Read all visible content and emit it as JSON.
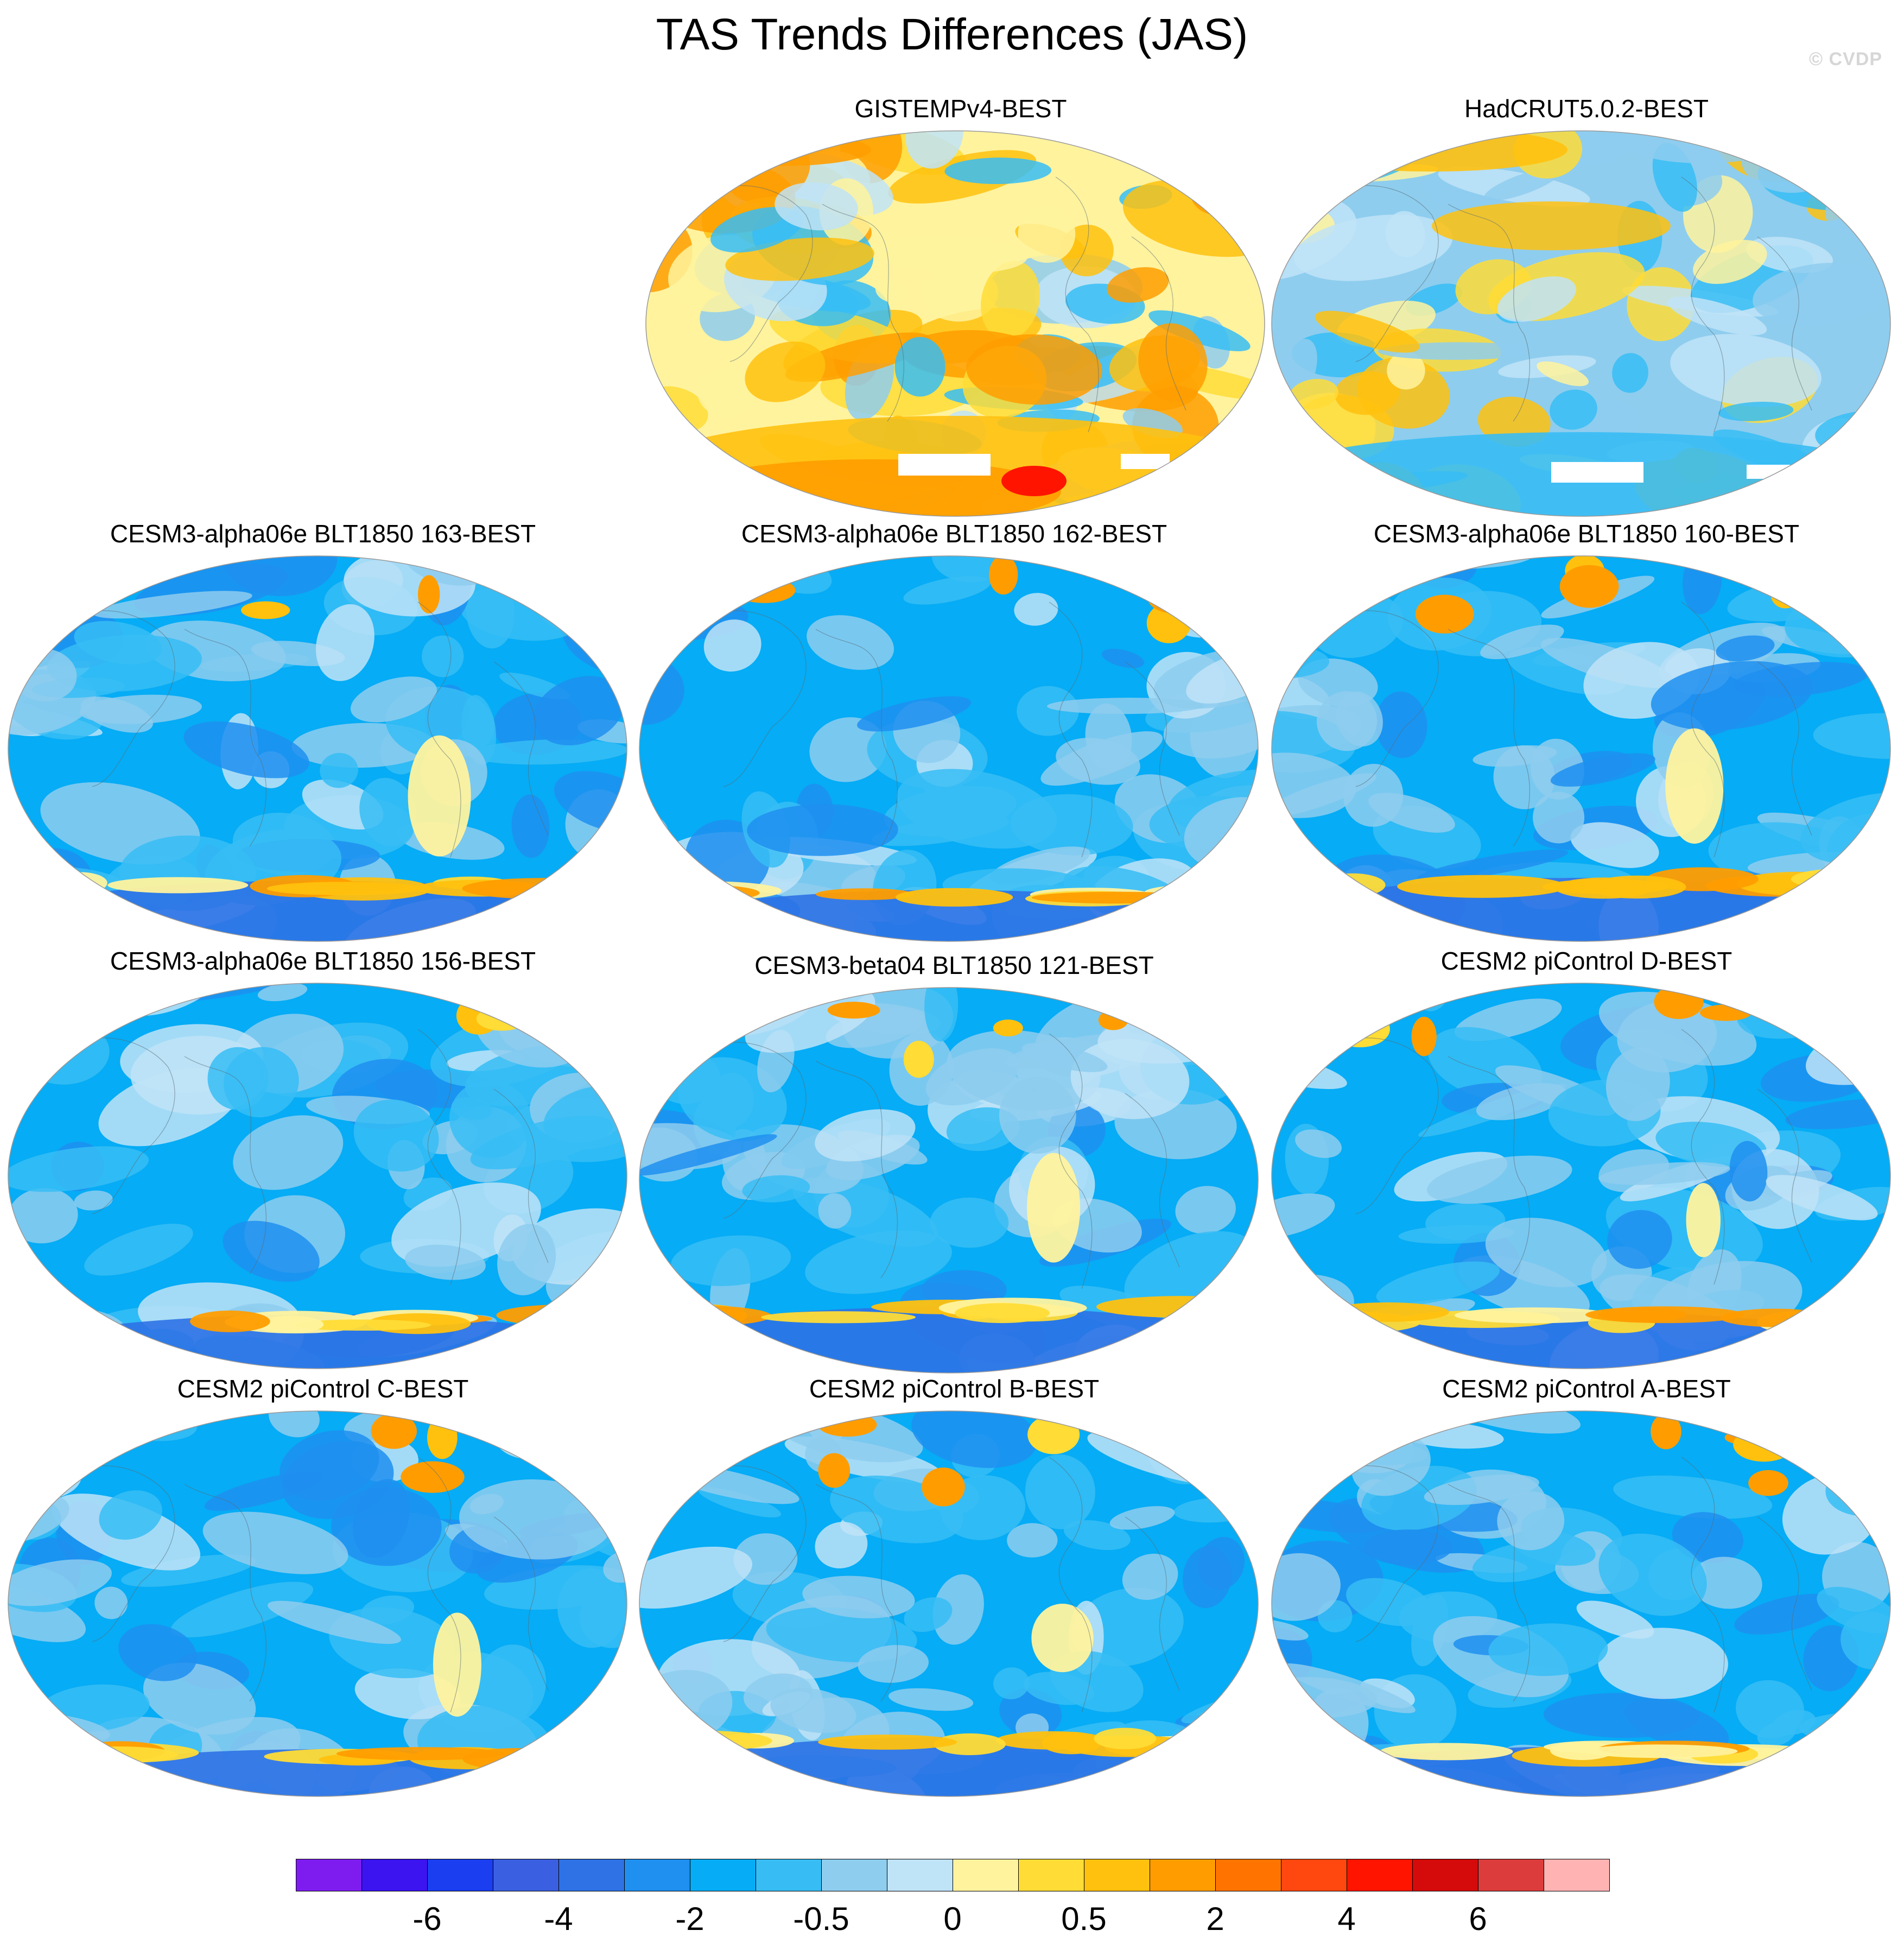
{
  "title": "TAS Trends Differences (JAS)",
  "watermark": "© CVDP",
  "colors": {
    "bin-6-": "#7e1cf0",
    "bin-7": "#3b14f0",
    "bin-6": "#1a3ef0",
    "bin-5": "#3a5fe0",
    "bin-4": "#2e72e6",
    "bin-3": "#1f8ff0",
    "bin-2": "#06acf5",
    "bin-1": "#37bdf4",
    "bin-05": "#8ecdee",
    "bin-0": "#bfe3f7",
    "bin+0": "#fff39e",
    "bin+05": "#ffdc36",
    "bin+1": "#ffc10e",
    "bin+2": "#ff9d00",
    "bin+3": "#ff7400",
    "bin+4": "#ff4710",
    "bin+5": "#ff1400",
    "bin+6": "#d50a0a",
    "bin+7": "#dc3c3c",
    "bin+8": "#ffb3b3",
    "land_missing": "#ffffff"
  },
  "panels": [
    {
      "title": "GISTEMPv4-BEST",
      "regime": "warm"
    },
    {
      "title": "HadCRUT5.0.2-BEST",
      "regime": "mixed"
    },
    {
      "title": "CESM3-alpha06e BLT1850 163-BEST",
      "regime": "cool"
    },
    {
      "title": "CESM3-alpha06e BLT1850 162-BEST",
      "regime": "cool"
    },
    {
      "title": "CESM3-alpha06e BLT1850 160-BEST",
      "regime": "cool"
    },
    {
      "title": "CESM3-alpha06e BLT1850 156-BEST",
      "regime": "cool"
    },
    {
      "title": "CESM3-beta04 BLT1850 121-BEST",
      "regime": "cool"
    },
    {
      "title": "CESM2 piControl D-BEST",
      "regime": "cool"
    },
    {
      "title": "CESM2 piControl C-BEST",
      "regime": "cool"
    },
    {
      "title": "CESM2 piControl B-BEST",
      "regime": "cool"
    },
    {
      "title": "CESM2 piControl A-BEST",
      "regime": "cool"
    }
  ],
  "colorbar": {
    "labels": [
      "-6",
      "-4",
      "-2",
      "-0.5",
      "0",
      "0.5",
      "2",
      "4",
      "6"
    ],
    "bins": [
      "#7e1cf0",
      "#3b14f0",
      "#1a3ef0",
      "#3a5fe0",
      "#2e72e6",
      "#1f8ff0",
      "#06acf5",
      "#37bdf4",
      "#8ecdee",
      "#bfe3f7",
      "#fff39e",
      "#ffdc36",
      "#ffc10e",
      "#ff9d00",
      "#ff7400",
      "#ff4710",
      "#ff1400",
      "#d50a0a",
      "#dc3c3c",
      "#ffb3b3"
    ]
  }
}
